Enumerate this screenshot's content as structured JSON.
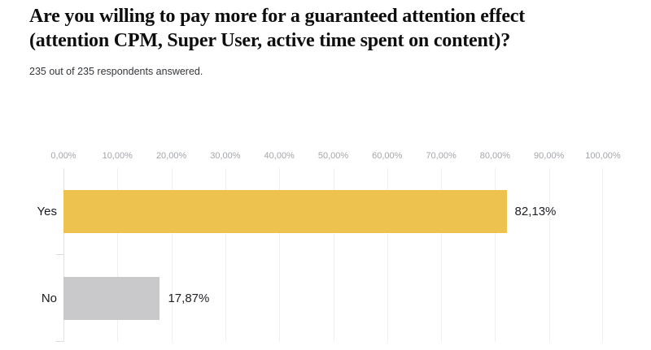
{
  "header": {
    "title_lines": [
      "Are you willing to pay more for a guaranteed attention effect",
      "(attention CPM, Super User, active time spent on content)?"
    ],
    "subtitle": "235 out of 235 respondents answered."
  },
  "chart_data": {
    "type": "bar",
    "orientation": "horizontal",
    "title": "Are you willing to pay more for a guaranteed attention effect (attention CPM, Super User, active time spent on content)?",
    "categories": [
      "Yes",
      "No"
    ],
    "values": [
      82.13,
      17.87
    ],
    "value_labels": [
      "82,13%",
      "17,87%"
    ],
    "xlabel": "",
    "ylabel": "",
    "xlim": [
      0,
      100
    ],
    "axis": {
      "min": 0,
      "max": 100,
      "step": 10,
      "tick_labels": [
        "0,00%",
        "10,00%",
        "20,00%",
        "30,00%",
        "40,00%",
        "50,00%",
        "60,00%",
        "70,00%",
        "80,00%",
        "90,00%",
        "100,00%"
      ]
    },
    "grid": true,
    "legend": false,
    "colors": {
      "bars": [
        "#EDC24E",
        "#C9C9CB"
      ],
      "grid_line": "#f0f0f0",
      "zero_axis_line": "#e3e3e3",
      "tick_label": "#a3a6ab",
      "value_label": "#202226",
      "category_label": "#17191c"
    }
  }
}
